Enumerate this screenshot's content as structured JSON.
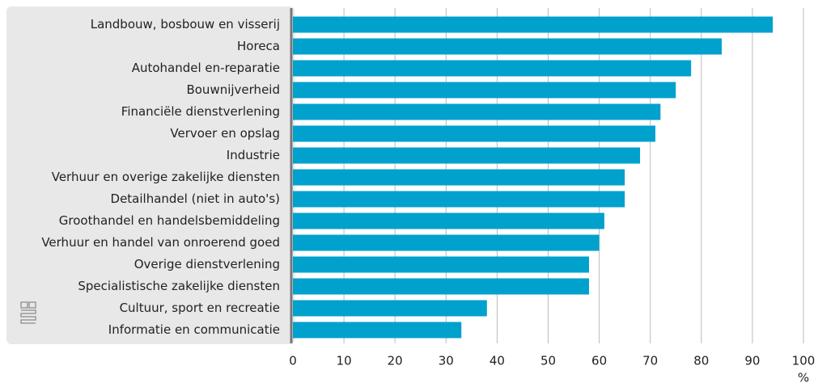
{
  "chart_data": {
    "type": "barh",
    "categories": [
      "Landbouw, bosbouw en visserij",
      "Horeca",
      "Autohandel en-reparatie",
      "Bouwnijverheid",
      "Financiële dienstverlening",
      "Vervoer en opslag",
      "Industrie",
      "Verhuur en overige zakelijke diensten",
      "Detailhandel (niet in auto's)",
      "Groothandel en handelsbemiddeling",
      "Verhuur en handel van onroerend goed",
      "Overige dienstverlening",
      "Specialistische zakelijke diensten",
      "Cultuur, sport en recreatie",
      "Informatie en communicatie"
    ],
    "values": [
      94,
      84,
      78,
      75,
      72,
      71,
      68,
      65,
      65,
      61,
      60,
      58,
      58,
      38,
      33
    ],
    "color": "#00a1cd",
    "x_label": "%",
    "xlim": [
      0,
      100
    ],
    "xticks": [
      0,
      10,
      20,
      30,
      40,
      50,
      60,
      70,
      80,
      90,
      100
    ],
    "grid": true
  }
}
